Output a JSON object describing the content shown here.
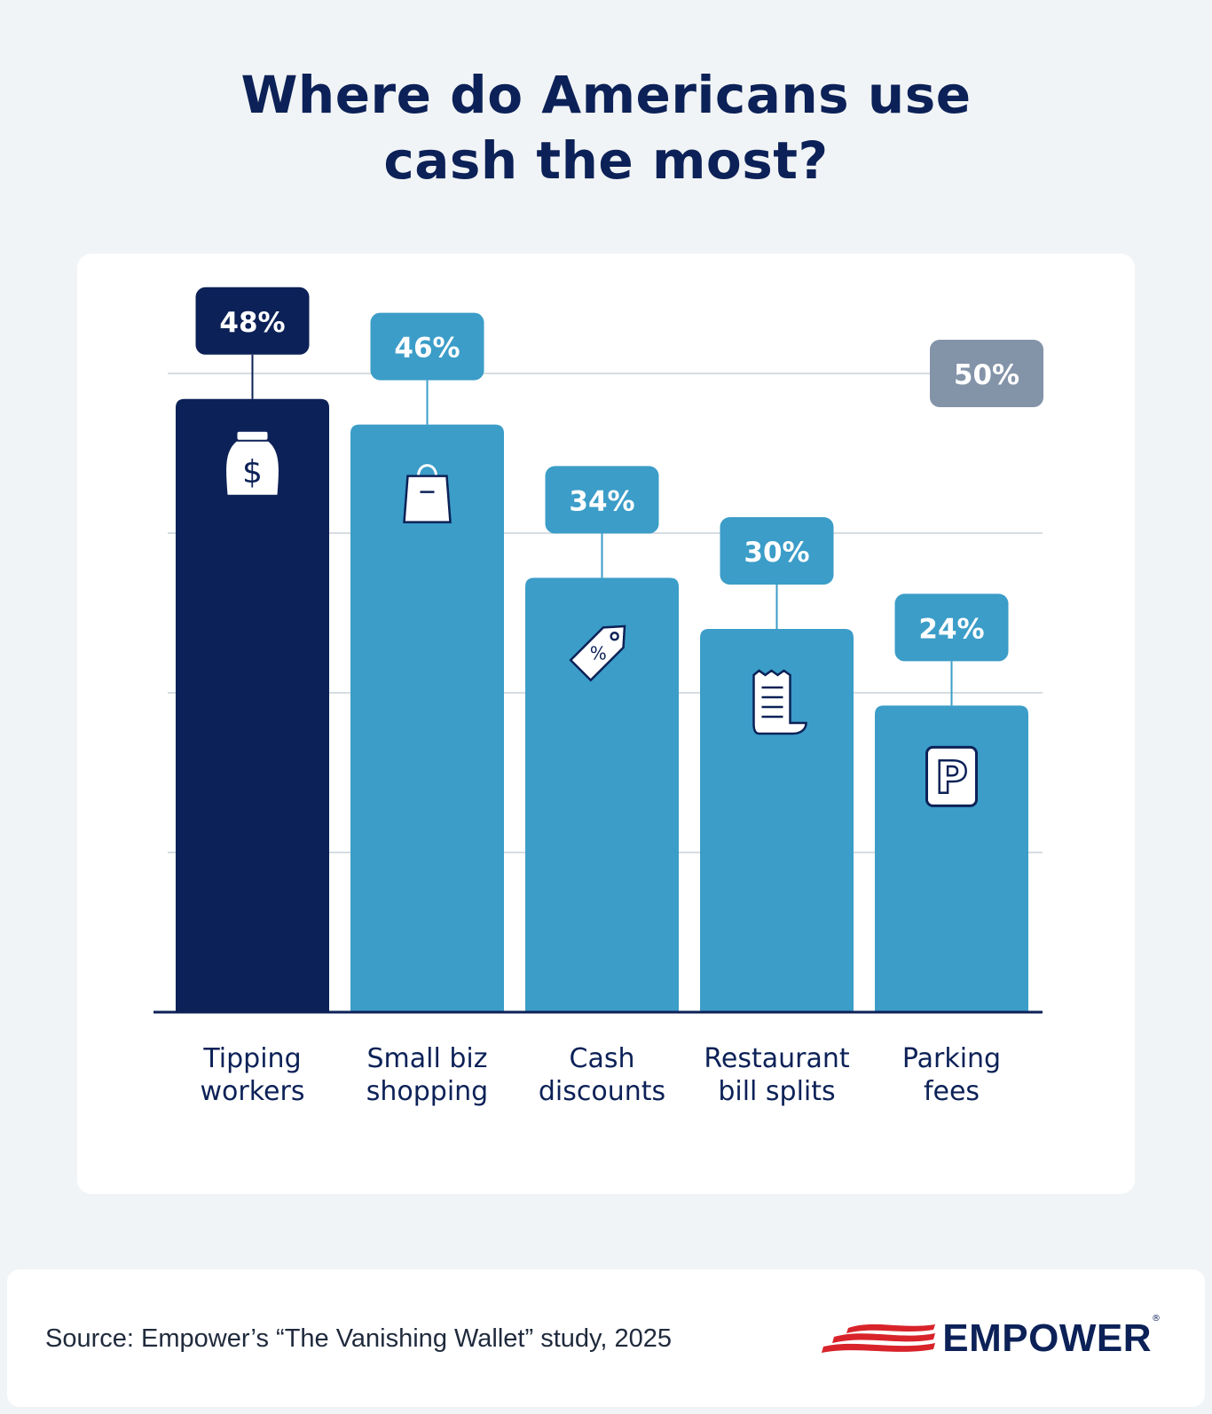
{
  "title": {
    "line1": "Where do Americans use",
    "line2": "cash the most?"
  },
  "chart_data": {
    "type": "bar",
    "categories": [
      [
        "Tipping",
        "workers"
      ],
      [
        "Small biz",
        "shopping"
      ],
      [
        "Cash",
        "discounts"
      ],
      [
        "Restaurant",
        "bill splits"
      ],
      [
        "Parking",
        "fees"
      ]
    ],
    "values": [
      48,
      46,
      34,
      30,
      24
    ],
    "data_labels": [
      "48%",
      "46%",
      "34%",
      "30%",
      "24%"
    ],
    "ylim": [
      0,
      50
    ],
    "gridlines": [
      12.5,
      25,
      37.5,
      50
    ],
    "max_gridline_label": "50%",
    "highlight_index": 0,
    "icons": [
      "money-bag-icon",
      "shopping-bag-icon",
      "price-tag-icon",
      "receipt-icon",
      "parking-icon"
    ],
    "colors": {
      "highlight": "#0c2157",
      "bar": "#3b9dc8",
      "max_label": "#8393a8",
      "grid": "#c9d2d8",
      "axis": "#0c2157",
      "category_text": "#0c2157"
    }
  },
  "footer": {
    "source": "Source: Empower’s “The Vanishing Wallet” study, 2025",
    "logo_text": "EMPOWER",
    "logo_mark": "®"
  }
}
